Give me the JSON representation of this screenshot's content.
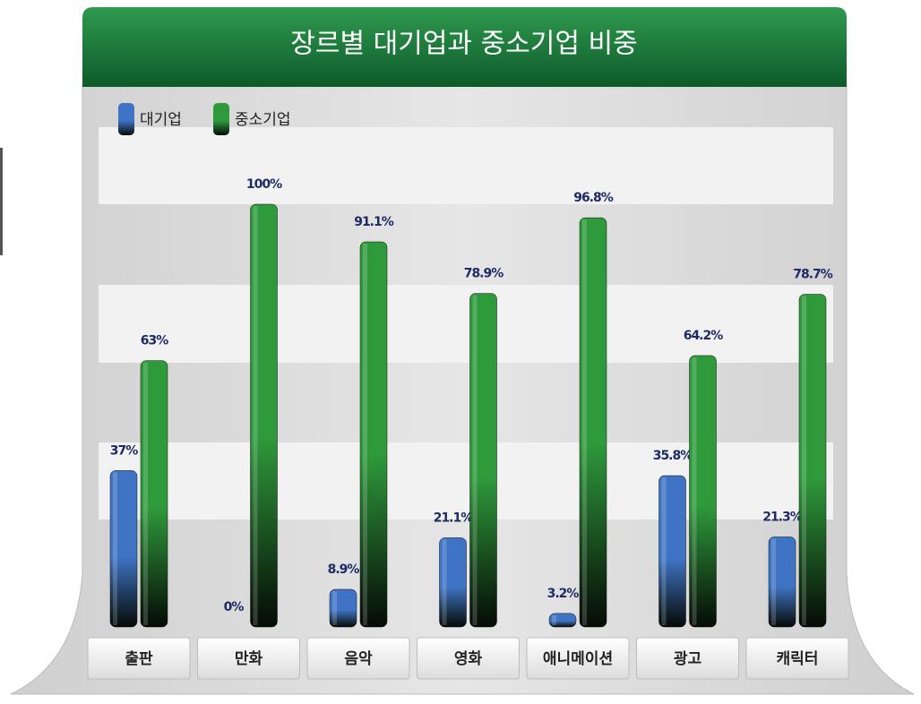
{
  "chart_data": {
    "type": "bar",
    "title": "장르별 대기업과 중소기업 비중",
    "categories": [
      "출판",
      "만화",
      "음악",
      "영화",
      "애니메이션",
      "광고",
      "캐릭터"
    ],
    "series": [
      {
        "name": "대기업",
        "color": "#3f74c4",
        "values": [
          37,
          0,
          8.9,
          21.1,
          3.2,
          35.8,
          21.3
        ],
        "value_labels": [
          "37%",
          "0%",
          "8.9%",
          "21.1%",
          "3.2%",
          "35.8%",
          "21.3%"
        ]
      },
      {
        "name": "중소기업",
        "color": "#2f9a3c",
        "values": [
          63,
          100,
          91.1,
          78.9,
          96.8,
          64.2,
          78.7
        ],
        "value_labels": [
          "63%",
          "100%",
          "91.1%",
          "78.9%",
          "96.8%",
          "64.2%",
          "78.7%"
        ]
      }
    ],
    "legend": "top-left"
  }
}
